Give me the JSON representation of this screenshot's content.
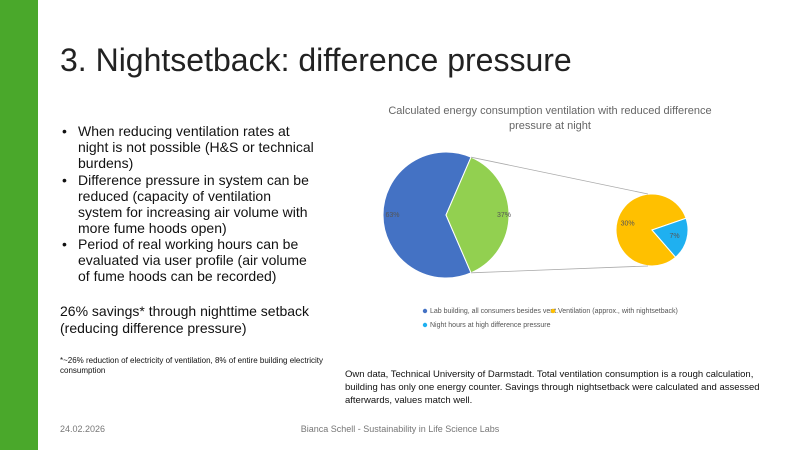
{
  "slide": {
    "title": "3. Nightsetback: difference pressure",
    "bullets": [
      "When reducing ventilation rates at night is not possible (H&S or technical burdens)",
      "Difference pressure in system can be reduced (capacity of ventilation system for increasing air volume with more fume hoods open)",
      "Period of real working hours can be evaluated via user profile (air volume of fume hoods can be recorded)"
    ],
    "savings": "26% savings* through nighttime setback (reducing difference pressure)",
    "footnote": "*~26% reduction of electricity of ventilation, 8% of entire building electricity consumption",
    "source": "Own data, Technical University of Darmstadt. Total ventilation consumption is a rough calculation, building has only one energy counter. Savings through nightsetback were calculated and assessed afterwards, values match well."
  },
  "footer": {
    "date": "24.02.2026",
    "center": "Bianca Schell - Sustainability in Life Science Labs"
  },
  "chart_data": {
    "type": "pie-of-pie",
    "title": "Calculated energy consumption ventilation with reduced difference pressure at night",
    "categories": [
      "Lab building, all consumers besides vent.",
      "Ventilation (approx., with nightsetback)",
      "Night hours at high difference pressure"
    ],
    "values": [
      63,
      30,
      7
    ],
    "value_labels": [
      "63%",
      "30%",
      "7%"
    ],
    "colors": [
      "#4472c4",
      "#ffc000",
      "#1fb0f0"
    ],
    "other_value": 37,
    "other_value_label": "37%",
    "other_color": "#92d050"
  }
}
